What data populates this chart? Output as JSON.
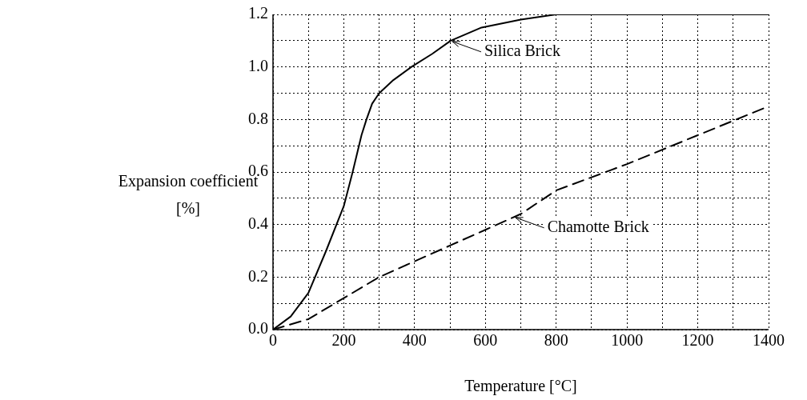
{
  "chart_data": {
    "type": "line",
    "xlabel": "Temperature [°C]",
    "ylabel": "Expansion coefficient [%]",
    "xlim": [
      0,
      1400
    ],
    "xticks": [
      0,
      {
        "value": 100,
        "label": null
      },
      200,
      {
        "value": 300,
        "label": null
      },
      400,
      {
        "value": 500,
        "label": null
      },
      600,
      {
        "value": 700,
        "label": null
      },
      800,
      {
        "value": 900,
        "label": null
      },
      1000,
      {
        "value": 1100,
        "label": null
      },
      1200,
      {
        "value": 1300,
        "label": null
      },
      1400
    ],
    "ylim": [
      0,
      1.2
    ],
    "yticks": [
      {
        "value": 0,
        "label": "0.0"
      },
      {
        "value": 0.1,
        "label": null
      },
      {
        "value": 0.2,
        "label": "0.2"
      },
      {
        "value": 0.3,
        "label": null
      },
      {
        "value": 0.4,
        "label": "0.4"
      },
      {
        "value": 0.5,
        "label": null
      },
      {
        "value": 0.6,
        "label": "0.6"
      },
      {
        "value": 0.7,
        "label": null
      },
      {
        "value": 0.8,
        "label": "0.8"
      },
      {
        "value": 0.9,
        "label": null
      },
      {
        "value": 1.0,
        "label": "1.0"
      },
      {
        "value": 1.1,
        "label": null
      },
      {
        "value": 1.2,
        "label": "1.2"
      }
    ],
    "grid": true,
    "legend": false,
    "marker": "none",
    "series": [
      {
        "color": "#000000",
        "line_style": "solid",
        "x": [
          0,
          50,
          100,
          150,
          200,
          225,
          250,
          264,
          280,
          300,
          340,
          391,
          450,
          502,
          589,
          700,
          800,
          1000,
          1400
        ],
        "values": [
          0,
          0.05,
          0.14,
          0.3,
          0.47,
          0.6,
          0.74,
          0.8,
          0.86,
          0.9,
          0.95,
          1.0,
          1.05,
          1.1,
          1.15,
          1.18,
          1.2,
          1.2,
          1.2
        ]
      },
      {
        "color": "#000000",
        "line_style": "dashed",
        "x": [
          0,
          100,
          200,
          300,
          400,
          500,
          600,
          700,
          800,
          1000,
          1200,
          1400
        ],
        "values": [
          0,
          0.04,
          0.12,
          0.2,
          0.26,
          0.32,
          0.38,
          0.44,
          0.53,
          0.63,
          0.74,
          0.85
        ]
      }
    ],
    "annotations": [
      {
        "text": "Silica Brick",
        "x": 502,
        "y": 1.1
      },
      {
        "text": "Chamotte Brick",
        "x": 680,
        "y": 0.43
      }
    ]
  }
}
